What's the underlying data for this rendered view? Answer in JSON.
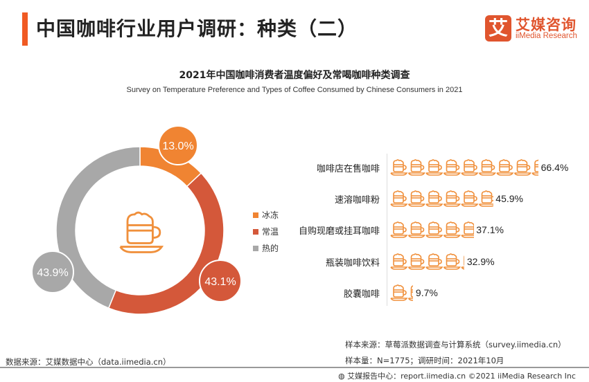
{
  "header": {
    "title": "中国咖啡行业用户调研：种类（二）",
    "logo_mark": "艾",
    "logo_cn": "艾媒咨询",
    "logo_en": "iiMedia Research"
  },
  "colors": {
    "accent": "#F05A23",
    "frozen": "#F08432",
    "room": "#D4583A",
    "hot": "#A8A8A8",
    "pictogram": "#F0903C"
  },
  "chart_data": [
    {
      "type": "pie",
      "variant": "donut",
      "title": "2021年中国咖啡消费者温度偏好及常喝咖啡种类调查",
      "subtitle": "Survey on Temperature Preference and Types of Coffee Consumed by Chinese Consumers in 2021",
      "categories": [
        "冰冻",
        "常温",
        "热的"
      ],
      "values": [
        13.0,
        43.1,
        43.9
      ],
      "labels": [
        "13.0%",
        "43.1%",
        "43.9%"
      ],
      "legend": "right",
      "center_icon": "coffee-cup-icon"
    },
    {
      "type": "bar",
      "variant": "pictogram",
      "icon": "coffee-cup-icon",
      "unit_per_icon": 8,
      "categories": [
        "咖啡店在售咖啡",
        "速溶咖啡粉",
        "自购现磨或挂耳咖啡",
        "瓶装咖啡饮料",
        "胶囊咖啡"
      ],
      "values": [
        66.4,
        45.9,
        37.1,
        32.9,
        9.7
      ],
      "labels": [
        "66.4%",
        "45.9%",
        "37.1%",
        "32.9%",
        "9.7%"
      ]
    }
  ],
  "footer": {
    "data_source": "数据来源：艾媒数据中心（data.iimedia.cn）",
    "sample_source": "样本来源：草莓派数据调查与计算系统（survey.iimedia.cn）",
    "sample_info": "样本量：N=1775；调研时间：2021年10月",
    "report": "艾媒报告中心：report.iimedia.cn  ©2021  iiMedia Research Inc"
  }
}
